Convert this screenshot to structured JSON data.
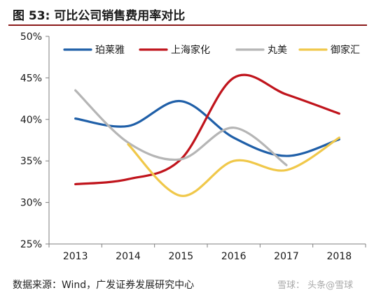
{
  "header": {
    "title": "图 53: 可比公司销售费用率对比"
  },
  "footer": {
    "source": "数据来源：Wind，广发证券发展研究中心"
  },
  "watermark": {
    "text": "雪球：  头条@雪球"
  },
  "colors": {
    "title_rule": "#8b1a1a",
    "axis": "#7f7f7f",
    "text": "#1a1a1a"
  },
  "chart_data": {
    "type": "line",
    "categories": [
      "2013",
      "2014",
      "2015",
      "2016",
      "2017",
      "2018"
    ],
    "y_ticks": [
      "25%",
      "30%",
      "35%",
      "40%",
      "45%",
      "50%"
    ],
    "ylim": [
      25,
      50
    ],
    "grid": false,
    "legend_position": "top",
    "smooth": true,
    "series": [
      {
        "name": "珀莱雅",
        "color": "#1f5fa8",
        "values": [
          40.1,
          39.2,
          42.2,
          37.8,
          35.6,
          37.6
        ]
      },
      {
        "name": "上海家化",
        "color": "#c0141c",
        "values": [
          32.2,
          32.8,
          35.2,
          45.0,
          43.0,
          40.7
        ]
      },
      {
        "name": "丸美",
        "color": "#b5b5b5",
        "values": [
          43.5,
          37.2,
          35.2,
          39.0,
          34.5,
          null
        ]
      },
      {
        "name": "御家汇",
        "color": "#f0c84a",
        "values": [
          null,
          37.0,
          30.8,
          35.0,
          33.9,
          37.8
        ]
      }
    ]
  }
}
